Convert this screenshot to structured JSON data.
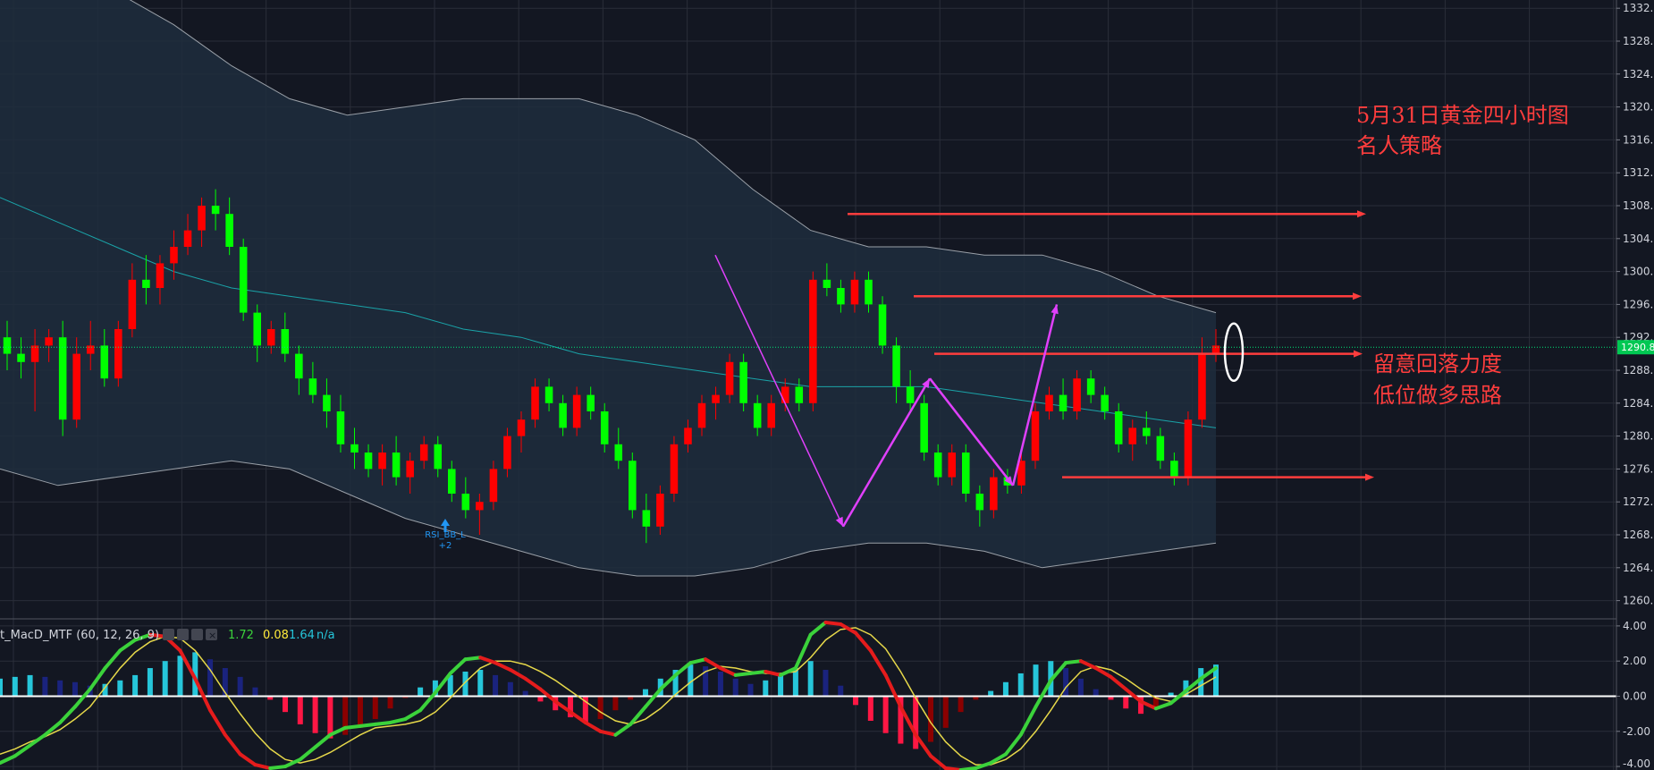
{
  "chart_data": {
    "type": "candlestick",
    "main_panel": {
      "y_ticks": [
        "1332.0",
        "1328.0",
        "1324.0",
        "1320.0",
        "1316.0",
        "1312.0",
        "1308.0",
        "1304.0",
        "1300.0",
        "1296.0",
        "1292.0",
        "1288.0",
        "1284.0",
        "1280.0",
        "1276.0",
        "1272.0",
        "1268.0",
        "1264.0",
        "1260.0"
      ],
      "ylim": [
        1258,
        1333
      ],
      "current_price_label": "1290.8",
      "current_price": 1290.8,
      "annotation_title": "5月31日黄金四小时图",
      "annotation_subtitle": "名人策略",
      "annotation_note_1": "留意回落力度",
      "annotation_note_2": "低位做多思路",
      "signal_label": "RSI_BB_L",
      "signal_sub": "+2",
      "horizontal_levels": [
        1307.0,
        1297.0,
        1290.0,
        1275.0
      ],
      "candles_ohlc": [
        [
          1292,
          1294,
          1288,
          1290
        ],
        [
          1290,
          1292,
          1287,
          1289
        ],
        [
          1289,
          1293,
          1283,
          1291
        ],
        [
          1291,
          1293,
          1289,
          1292
        ],
        [
          1292,
          1294,
          1280,
          1282
        ],
        [
          1282,
          1292,
          1281,
          1290
        ],
        [
          1290,
          1294,
          1288,
          1291
        ],
        [
          1291,
          1293,
          1286,
          1287
        ],
        [
          1287,
          1294,
          1286,
          1293
        ],
        [
          1293,
          1301,
          1292,
          1299
        ],
        [
          1299,
          1302,
          1296,
          1298
        ],
        [
          1298,
          1302,
          1296,
          1301
        ],
        [
          1301,
          1305,
          1299,
          1303
        ],
        [
          1303,
          1307,
          1302,
          1305
        ],
        [
          1305,
          1309,
          1303,
          1308
        ],
        [
          1308,
          1310,
          1305,
          1307
        ],
        [
          1307,
          1309,
          1302,
          1303
        ],
        [
          1303,
          1304,
          1294,
          1295
        ],
        [
          1295,
          1296,
          1289,
          1291
        ],
        [
          1291,
          1294,
          1290,
          1293
        ],
        [
          1293,
          1295,
          1289,
          1290
        ],
        [
          1290,
          1291,
          1285,
          1287
        ],
        [
          1287,
          1289,
          1284,
          1285
        ],
        [
          1285,
          1287,
          1281,
          1283
        ],
        [
          1283,
          1285,
          1278,
          1279
        ],
        [
          1279,
          1281,
          1276,
          1278
        ],
        [
          1278,
          1279,
          1275,
          1276
        ],
        [
          1276,
          1279,
          1274,
          1278
        ],
        [
          1278,
          1280,
          1274,
          1275
        ],
        [
          1275,
          1278,
          1273,
          1277
        ],
        [
          1277,
          1280,
          1276,
          1279
        ],
        [
          1279,
          1280,
          1275,
          1276
        ],
        [
          1276,
          1277,
          1272,
          1273
        ],
        [
          1273,
          1275,
          1270,
          1271
        ],
        [
          1271,
          1273,
          1268,
          1272
        ],
        [
          1272,
          1277,
          1271,
          1276
        ],
        [
          1276,
          1281,
          1275,
          1280
        ],
        [
          1280,
          1283,
          1278,
          1282
        ],
        [
          1282,
          1287,
          1281,
          1286
        ],
        [
          1286,
          1287,
          1283,
          1284
        ],
        [
          1284,
          1285,
          1280,
          1281
        ],
        [
          1281,
          1286,
          1280,
          1285
        ],
        [
          1285,
          1286,
          1282,
          1283
        ],
        [
          1283,
          1284,
          1278,
          1279
        ],
        [
          1279,
          1281,
          1276,
          1277
        ],
        [
          1277,
          1278,
          1270,
          1271
        ],
        [
          1271,
          1273,
          1267,
          1269
        ],
        [
          1269,
          1274,
          1268,
          1273
        ],
        [
          1273,
          1280,
          1272,
          1279
        ],
        [
          1279,
          1282,
          1278,
          1281
        ],
        [
          1281,
          1285,
          1280,
          1284
        ],
        [
          1284,
          1286,
          1282,
          1285
        ],
        [
          1285,
          1290,
          1284,
          1289
        ],
        [
          1289,
          1290,
          1283,
          1284
        ],
        [
          1284,
          1285,
          1280,
          1281
        ],
        [
          1281,
          1285,
          1280,
          1284
        ],
        [
          1284,
          1287,
          1283,
          1286
        ],
        [
          1286,
          1287,
          1283,
          1284
        ],
        [
          1284,
          1300,
          1283,
          1299
        ],
        [
          1299,
          1301,
          1297,
          1298
        ],
        [
          1298,
          1299,
          1295,
          1296
        ],
        [
          1296,
          1300,
          1295,
          1299
        ],
        [
          1299,
          1300,
          1295,
          1296
        ],
        [
          1296,
          1297,
          1290,
          1291
        ],
        [
          1291,
          1292,
          1284,
          1286
        ],
        [
          1286,
          1288,
          1283,
          1284
        ],
        [
          1284,
          1285,
          1277,
          1278
        ],
        [
          1278,
          1279,
          1274,
          1275
        ],
        [
          1275,
          1279,
          1274,
          1278
        ],
        [
          1278,
          1279,
          1272,
          1273
        ],
        [
          1273,
          1274,
          1269,
          1271
        ],
        [
          1271,
          1276,
          1270,
          1275
        ],
        [
          1275,
          1276,
          1273,
          1274
        ],
        [
          1274,
          1278,
          1273,
          1277
        ],
        [
          1277,
          1284,
          1276,
          1283
        ],
        [
          1283,
          1286,
          1282,
          1285
        ],
        [
          1285,
          1287,
          1282,
          1283
        ],
        [
          1283,
          1288,
          1282,
          1287
        ],
        [
          1287,
          1288,
          1284,
          1285
        ],
        [
          1285,
          1286,
          1282,
          1283
        ],
        [
          1283,
          1284,
          1278,
          1279
        ],
        [
          1279,
          1282,
          1277,
          1281
        ],
        [
          1281,
          1283,
          1279,
          1280
        ],
        [
          1280,
          1281,
          1276,
          1277
        ],
        [
          1277,
          1278,
          1274,
          1275
        ],
        [
          1275,
          1283,
          1274,
          1282
        ],
        [
          1282,
          1292,
          1281,
          1290
        ],
        [
          1290,
          1293,
          1289,
          1291
        ]
      ],
      "bb_upper": [
        1340,
        1338,
        1334,
        1330,
        1325,
        1321,
        1319,
        1320,
        1321,
        1321,
        1321,
        1319,
        1316,
        1310,
        1305,
        1303,
        1303,
        1302,
        1302,
        1300,
        1297,
        1295
      ],
      "bb_middle": [
        1309,
        1306,
        1303,
        1300,
        1298,
        1297,
        1296,
        1295,
        1293,
        1292,
        1290,
        1289,
        1288,
        1287,
        1286,
        1286,
        1286,
        1285,
        1284,
        1283,
        1282,
        1281
      ],
      "bb_lower": [
        1276,
        1274,
        1275,
        1276,
        1277,
        1276,
        1273,
        1270,
        1268,
        1266,
        1264,
        1263,
        1263,
        1264,
        1266,
        1267,
        1267,
        1266,
        1264,
        1265,
        1266,
        1267
      ],
      "magenta_path": [
        [
          800,
          1302
        ],
        [
          943,
          1269
        ],
        [
          1040,
          1287
        ],
        [
          1133,
          1274
        ],
        [
          1182,
          1296
        ]
      ]
    },
    "macd_panel": {
      "indicator_name": "t_MacD_MTF (60, 12, 26, 9)",
      "values": [
        "1.72",
        "0.08",
        "1.64",
        "n/a"
      ],
      "value_colors": [
        "#3bd23b",
        "#ffeb3b",
        "#26c6da",
        "#26c6da"
      ],
      "y_ticks": [
        "4.00",
        "2.00",
        "0.00",
        "-2.00",
        "-4.00"
      ],
      "ylim": [
        -4.2,
        4.3
      ],
      "histogram": [
        1.0,
        1.1,
        1.2,
        1.1,
        0.9,
        0.8,
        0.6,
        0.7,
        0.9,
        1.2,
        1.6,
        2.0,
        2.3,
        2.5,
        2.1,
        1.6,
        1.1,
        0.5,
        -0.2,
        -0.9,
        -1.6,
        -2.1,
        -2.4,
        -2.2,
        -1.8,
        -1.3,
        -0.7,
        -0.1,
        0.5,
        0.9,
        1.2,
        1.4,
        1.5,
        1.2,
        0.8,
        0.3,
        -0.3,
        -0.8,
        -1.2,
        -1.5,
        -1.3,
        -0.8,
        -0.2,
        0.4,
        1.0,
        1.5,
        1.8,
        1.7,
        1.4,
        1.0,
        0.7,
        0.9,
        1.2,
        1.6,
        2.0,
        1.5,
        0.6,
        -0.5,
        -1.4,
        -2.1,
        -2.7,
        -3.0,
        -2.6,
        -1.8,
        -0.9,
        -0.2,
        0.3,
        0.8,
        1.3,
        1.8,
        2.0,
        1.6,
        1.0,
        0.4,
        -0.2,
        -0.7,
        -1.0,
        -0.6,
        0.2,
        0.9,
        1.6,
        1.8
      ],
      "macd_line": [
        -3.8,
        -3.4,
        -2.8,
        -2.2,
        -1.5,
        -0.6,
        0.4,
        1.6,
        2.6,
        3.2,
        3.5,
        3.4,
        2.6,
        1.0,
        -0.8,
        -2.2,
        -3.3,
        -3.9,
        -4.1,
        -4.0,
        -3.6,
        -2.9,
        -2.2,
        -1.8,
        -1.7,
        -1.6,
        -1.5,
        -1.3,
        -0.8,
        0.2,
        1.3,
        2.1,
        2.2,
        1.9,
        1.5,
        1.0,
        0.4,
        -0.3,
        -0.9,
        -1.5,
        -2.0,
        -2.2,
        -1.6,
        -0.6,
        0.4,
        1.2,
        1.9,
        2.1,
        1.6,
        1.2,
        1.3,
        1.4,
        1.2,
        1.6,
        3.5,
        4.2,
        4.1,
        3.6,
        2.6,
        1.2,
        -0.6,
        -2.2,
        -3.4,
        -4.1,
        -4.2,
        -4.1,
        -3.8,
        -3.3,
        -2.2,
        -0.6,
        0.9,
        1.9,
        2.0,
        1.6,
        1.1,
        0.4,
        -0.3,
        -0.7,
        -0.4,
        0.3,
        1.0,
        1.6
      ],
      "slow_line": [
        -3.3,
        -3.0,
        -2.6,
        -2.3,
        -1.9,
        -1.3,
        -0.6,
        0.5,
        1.6,
        2.5,
        3.1,
        3.4,
        3.3,
        2.6,
        1.5,
        0.2,
        -1.0,
        -2.1,
        -3.0,
        -3.6,
        -3.8,
        -3.6,
        -3.2,
        -2.7,
        -2.2,
        -1.8,
        -1.7,
        -1.6,
        -1.4,
        -0.9,
        -0.1,
        0.8,
        1.6,
        2.0,
        2.0,
        1.8,
        1.4,
        0.9,
        0.3,
        -0.3,
        -0.9,
        -1.4,
        -1.6,
        -1.3,
        -0.7,
        0.1,
        0.8,
        1.4,
        1.7,
        1.6,
        1.4,
        1.3,
        1.3,
        1.4,
        2.2,
        3.2,
        3.8,
        3.9,
        3.5,
        2.7,
        1.4,
        -0.1,
        -1.5,
        -2.6,
        -3.4,
        -3.9,
        -3.9,
        -3.6,
        -3.0,
        -2.0,
        -0.8,
        0.5,
        1.4,
        1.7,
        1.5,
        1.0,
        0.4,
        -0.1,
        -0.3,
        0.1,
        0.6,
        1.1
      ]
    }
  }
}
